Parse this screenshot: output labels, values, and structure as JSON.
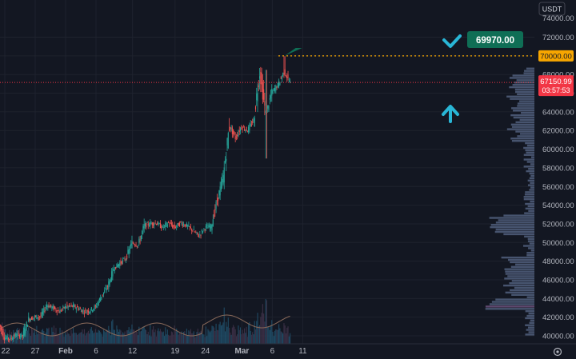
{
  "currency_button": "USDT",
  "colors": {
    "background": "#131722",
    "grid": "#1e222d",
    "text": "#d1d4dc",
    "up": "#26a69a",
    "down": "#ef5350",
    "volume_up": "#1f4a63",
    "volume_down": "#3a2f45",
    "ma": "#8a6a5a",
    "profile": "#5a6a8a",
    "profile_alt": "#7a5a8a",
    "highlight_level": "#f7a600",
    "price_label": "#f23645",
    "callout": "#0f6e55",
    "annotation": "#29b6d6"
  },
  "chart_data": {
    "type": "candlestick",
    "title": "",
    "xlabel": "",
    "ylabel": "",
    "ylim": [
      39500,
      74200
    ],
    "y_ticks": [
      72000,
      70000,
      68000,
      66000,
      64000,
      62000,
      60000,
      58000,
      56000,
      54000,
      52000,
      50000,
      48000,
      46000,
      44000,
      42000,
      40000
    ],
    "y_tick_labels": [
      "72000.00",
      "70000.00",
      "68000.00",
      "66000.00",
      "64000.00",
      "62000.00",
      "60000.00",
      "58000.00",
      "56000.00",
      "54000.00",
      "52000.00",
      "50000.00",
      "48000.00",
      "46000.00",
      "44000.00",
      "42000.00",
      "40000.00"
    ],
    "partial_top_tick_label": "74000.00",
    "x_ticks": [
      {
        "label": "22",
        "date": "2024-01-22"
      },
      {
        "label": "27",
        "date": "2024-01-27"
      },
      {
        "label": "Feb",
        "date": "2024-02-01"
      },
      {
        "label": "6",
        "date": "2024-02-06"
      },
      {
        "label": "12",
        "date": "2024-02-12"
      },
      {
        "label": "19",
        "date": "2024-02-19"
      },
      {
        "label": "24",
        "date": "2024-02-24"
      },
      {
        "label": "Mar",
        "date": "2024-03-01"
      },
      {
        "label": "6",
        "date": "2024-03-06"
      },
      {
        "label": "11",
        "date": "2024-03-11"
      }
    ],
    "x_range": [
      "2024-01-22",
      "2024-03-14"
    ],
    "daily_close_path": [
      [
        "2024-01-21",
        41500
      ],
      [
        "2024-01-22",
        39800
      ],
      [
        "2024-01-23",
        39700
      ],
      [
        "2024-01-24",
        40100
      ],
      [
        "2024-01-25",
        40000
      ],
      [
        "2024-01-26",
        41800
      ],
      [
        "2024-01-27",
        42000
      ],
      [
        "2024-01-28",
        42100
      ],
      [
        "2024-01-29",
        43300
      ],
      [
        "2024-01-30",
        43000
      ],
      [
        "2024-01-31",
        42600
      ],
      [
        "2024-02-01",
        43100
      ],
      [
        "2024-02-02",
        43200
      ],
      [
        "2024-02-03",
        43000
      ],
      [
        "2024-02-04",
        42600
      ],
      [
        "2024-02-05",
        42700
      ],
      [
        "2024-02-06",
        43100
      ],
      [
        "2024-02-07",
        44300
      ],
      [
        "2024-02-08",
        45300
      ],
      [
        "2024-02-09",
        47200
      ],
      [
        "2024-02-10",
        47800
      ],
      [
        "2024-02-11",
        48300
      ],
      [
        "2024-02-12",
        50000
      ],
      [
        "2024-02-13",
        49700
      ],
      [
        "2024-02-14",
        51800
      ],
      [
        "2024-02-15",
        52000
      ],
      [
        "2024-02-16",
        52100
      ],
      [
        "2024-02-17",
        51600
      ],
      [
        "2024-02-18",
        52100
      ],
      [
        "2024-02-19",
        51600
      ],
      [
        "2024-02-20",
        52100
      ],
      [
        "2024-02-21",
        51800
      ],
      [
        "2024-02-22",
        51300
      ],
      [
        "2024-02-23",
        50700
      ],
      [
        "2024-02-24",
        51600
      ],
      [
        "2024-02-25",
        51700
      ],
      [
        "2024-02-26",
        54500
      ],
      [
        "2024-02-27",
        57000
      ],
      [
        "2024-02-28",
        62500
      ],
      [
        "2024-02-29",
        61200
      ],
      [
        "2024-03-01",
        62400
      ],
      [
        "2024-03-02",
        62000
      ],
      [
        "2024-03-03",
        63100
      ],
      [
        "2024-03-04",
        68300
      ],
      [
        "2024-03-05",
        63700
      ],
      [
        "2024-03-06",
        66100
      ],
      [
        "2024-03-07",
        66900
      ],
      [
        "2024-03-08",
        68300
      ],
      [
        "2024-03-09",
        67150
      ]
    ],
    "current_price": 67150.99,
    "current_price_label": "67150.99",
    "countdown": "03:57:53",
    "level_line": 70000,
    "level_label": "70000.00",
    "callout_value": 69970,
    "callout_text": "69970.00"
  }
}
